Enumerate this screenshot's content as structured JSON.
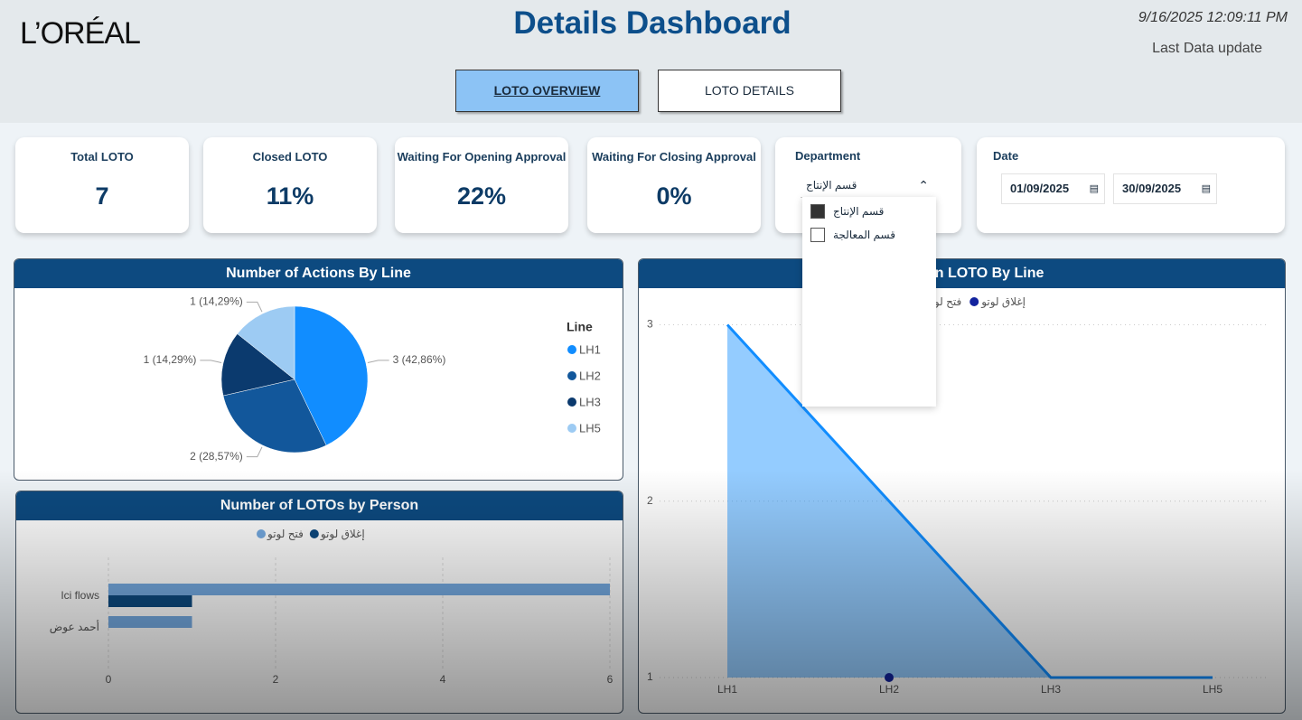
{
  "header": {
    "logo": "L’ORÉAL",
    "title": "Details Dashboard",
    "timestamp": "9/16/2025 12:09:11 PM",
    "last_update": "Last Data update"
  },
  "tabs": [
    {
      "label": "LOTO OVERVIEW",
      "active": true
    },
    {
      "label": "LOTO DETAILS",
      "active": false
    }
  ],
  "kpis": [
    {
      "label": "Total LOTO",
      "value": 7
    },
    {
      "label": "Closed LOTO",
      "value": "11%"
    },
    {
      "label": "Waiting For Opening Approval",
      "value": "22%"
    },
    {
      "label": "Waiting For Closing Approval",
      "value": "0%"
    }
  ],
  "filters": {
    "department": {
      "label": "Department",
      "selected": "قسم الإنتاج",
      "options": [
        {
          "label": "قسم الإنتاج",
          "checked": true
        },
        {
          "label": "قسم المعالجة",
          "checked": false
        }
      ]
    },
    "date": {
      "label": "Date",
      "start": "01/09/2025",
      "end": "30/09/2025"
    }
  },
  "chart_data": [
    {
      "type": "pie",
      "title": "Number of Actions By Line",
      "legend_title": "Line",
      "categories": [
        "LH1",
        "LH2",
        "LH3",
        "LH5"
      ],
      "values": [
        3,
        2,
        1,
        1
      ],
      "value_labels": [
        "3 (42,86%)",
        "2 (28,57%)",
        "1 (14,29%)",
        "1 (14,29%)"
      ],
      "colors": [
        "#118dff",
        "#12579b",
        "#0b3a6e",
        "#9dcbf3"
      ]
    },
    {
      "type": "hbar",
      "title": "Number of LOTOs by Person",
      "categories": [
        "Ici flows",
        "أحمد عوض"
      ],
      "series": [
        {
          "name": "فتح لوتو",
          "color": "#74a9e0",
          "values": [
            6,
            1
          ]
        },
        {
          "name": "إغلاق لوتو",
          "color": "#0d4a80",
          "values": [
            1,
            null
          ]
        }
      ],
      "xlim": [
        0,
        6
      ],
      "xticks": [
        0,
        2,
        4,
        6
      ],
      "grid": true
    },
    {
      "type": "area",
      "title": "e in LOTO By Line",
      "categories": [
        "LH1",
        "LH2",
        "LH3",
        "LH5"
      ],
      "series": [
        {
          "name": "فتح لوتو",
          "color": "#118dff",
          "values": [
            3,
            2,
            1,
            1
          ]
        },
        {
          "name": "إغلاق لوتو",
          "color": "#12239e",
          "values": [
            null,
            1,
            null,
            null
          ]
        }
      ],
      "ylim": [
        1,
        3.1
      ],
      "yticks": [
        1,
        2,
        3
      ],
      "grid": true
    }
  ]
}
